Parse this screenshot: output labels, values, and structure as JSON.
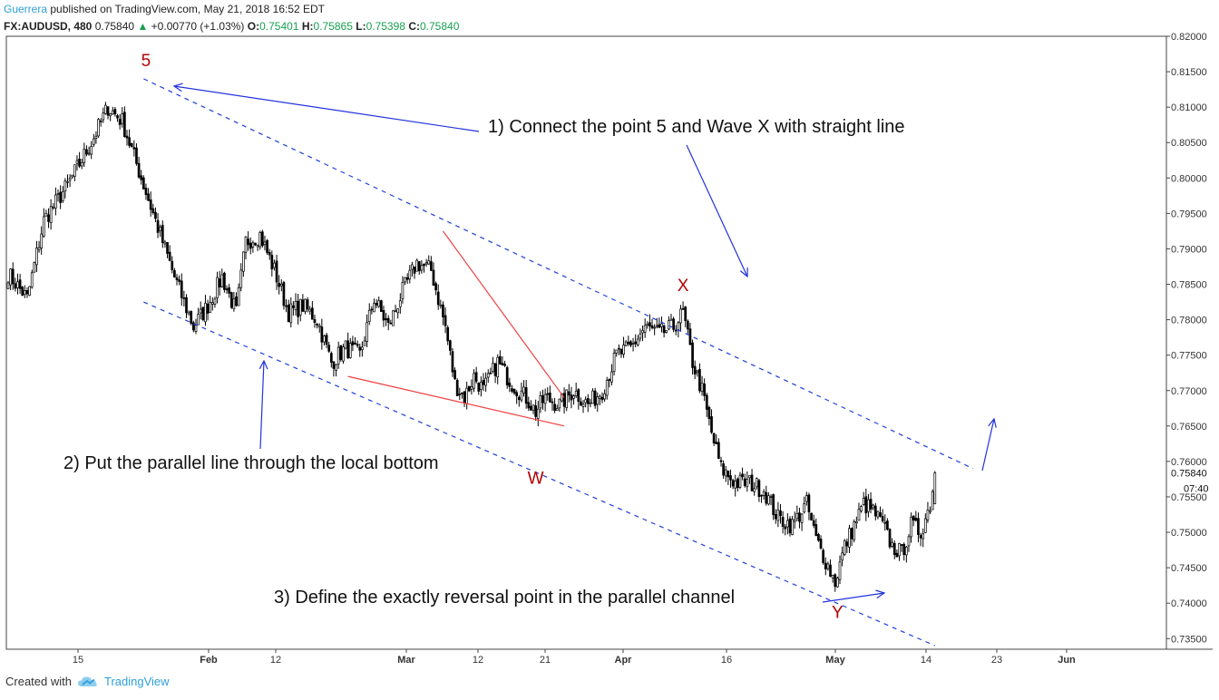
{
  "header": {
    "author": "Guerrera",
    "published": "published on TradingView.com, May 21, 2018 16:52 EDT",
    "symbol": "FX:AUDUSD, 480",
    "last": "0.75840",
    "arrow": "▲",
    "change": "+0.00770 (+1.03%)",
    "o_label": "O:",
    "o_value": "0.75401",
    "h_label": "H:",
    "h_value": "0.75865",
    "l_label": "L:",
    "l_value": "0.75398",
    "c_label": "C:",
    "c_value": "0.75840"
  },
  "footer": {
    "created_with": "Created with",
    "brand": "TradingView"
  },
  "colors": {
    "up": "#000000",
    "down": "#000000",
    "channel": "#1f3fe0",
    "wedge": "#f04040",
    "wave_label": "#b30000",
    "arrow": "#2233dd"
  },
  "chart_data": {
    "type": "candlestick",
    "title": "",
    "ylim": [
      0.7335,
      0.82
    ],
    "y_ticks": [
      "0.82000",
      "0.81500",
      "0.81000",
      "0.80500",
      "0.80000",
      "0.79500",
      "0.79000",
      "0.78500",
      "0.78000",
      "0.77500",
      "0.77000",
      "0.76500",
      "0.76000",
      "0.75500",
      "0.75000",
      "0.74500",
      "0.74000",
      "0.73500"
    ],
    "y_tick_values": [
      0.82,
      0.815,
      0.81,
      0.805,
      0.8,
      0.795,
      0.79,
      0.785,
      0.78,
      0.775,
      0.77,
      0.765,
      0.76,
      0.755,
      0.75,
      0.745,
      0.74,
      0.735
    ],
    "last_price_label": "0.75840",
    "countdown_label": "07:40",
    "x_tick_labels": [
      "15",
      "Feb",
      "12",
      "Mar",
      "12",
      "21",
      "Apr",
      "16",
      "May",
      "14",
      "23",
      "Jun"
    ],
    "x_tick_bold": [
      false,
      true,
      false,
      true,
      false,
      false,
      true,
      false,
      true,
      false,
      false,
      true
    ],
    "x_tick_index": [
      0,
      1,
      2,
      3,
      4,
      5,
      6,
      7,
      8,
      9,
      10,
      11
    ],
    "anchors_close": [
      [
        0,
        0.7865
      ],
      [
        8,
        0.783
      ],
      [
        15,
        0.794
      ],
      [
        25,
        0.799
      ],
      [
        35,
        0.805
      ],
      [
        42,
        0.81
      ],
      [
        48,
        0.808
      ],
      [
        56,
        0.8
      ],
      [
        62,
        0.794
      ],
      [
        70,
        0.786
      ],
      [
        78,
        0.779
      ],
      [
        84,
        0.782
      ],
      [
        90,
        0.786
      ],
      [
        96,
        0.781
      ],
      [
        100,
        0.791
      ],
      [
        106,
        0.792
      ],
      [
        112,
        0.787
      ],
      [
        118,
        0.781
      ],
      [
        124,
        0.782
      ],
      [
        130,
        0.78
      ],
      [
        136,
        0.774
      ],
      [
        142,
        0.776
      ],
      [
        148,
        0.775
      ],
      [
        154,
        0.783
      ],
      [
        160,
        0.779
      ],
      [
        166,
        0.784
      ],
      [
        172,
        0.788
      ],
      [
        178,
        0.787
      ],
      [
        184,
        0.779
      ],
      [
        188,
        0.771
      ],
      [
        192,
        0.769
      ],
      [
        196,
        0.772
      ],
      [
        200,
        0.77
      ],
      [
        206,
        0.774
      ],
      [
        212,
        0.771
      ],
      [
        218,
        0.769
      ],
      [
        222,
        0.767
      ],
      [
        226,
        0.769
      ],
      [
        232,
        0.768
      ],
      [
        238,
        0.77
      ],
      [
        244,
        0.768
      ],
      [
        250,
        0.77
      ],
      [
        256,
        0.775
      ],
      [
        262,
        0.776
      ],
      [
        268,
        0.779
      ],
      [
        274,
        0.778
      ],
      [
        280,
        0.779
      ],
      [
        284,
        0.781
      ],
      [
        288,
        0.774
      ],
      [
        292,
        0.77
      ],
      [
        296,
        0.764
      ],
      [
        300,
        0.759
      ],
      [
        306,
        0.757
      ],
      [
        312,
        0.757
      ],
      [
        318,
        0.756
      ],
      [
        324,
        0.752
      ],
      [
        330,
        0.751
      ],
      [
        336,
        0.754
      ],
      [
        340,
        0.749
      ],
      [
        344,
        0.746
      ],
      [
        348,
        0.743
      ],
      [
        352,
        0.748
      ],
      [
        356,
        0.751
      ],
      [
        360,
        0.754
      ],
      [
        364,
        0.753
      ],
      [
        368,
        0.751
      ],
      [
        372,
        0.748
      ],
      [
        376,
        0.747
      ],
      [
        380,
        0.751
      ],
      [
        384,
        0.75
      ],
      [
        388,
        0.754
      ],
      [
        390,
        0.7584
      ]
    ],
    "wave_labels": [
      {
        "label": "5",
        "index": 58,
        "price": 0.8135
      },
      {
        "label": "X",
        "index": 284,
        "price": 0.7815
      },
      {
        "label": "W",
        "index": 222,
        "price": 0.7645
      },
      {
        "label": "Y",
        "index": 349,
        "price": 0.7415
      }
    ],
    "channel_upper": {
      "i0": 57,
      "p0": 0.814,
      "i1": 406,
      "p1": 0.759
    },
    "channel_lower": {
      "i0": 57,
      "p0": 0.7825,
      "i1": 390,
      "p1": 0.734
    },
    "wedge_upper": {
      "i0": 183,
      "p0": 0.7925,
      "i1": 234,
      "p1": 0.769
    },
    "wedge_lower": {
      "i0": 143,
      "p0": 0.772,
      "i1": 234,
      "p1": 0.765
    },
    "annotations": [
      {
        "text": "1) Connect the point 5 and Wave X with straight line"
      },
      {
        "text": "2) Put the parallel line through the local bottom"
      },
      {
        "text": "3) Define the exactly reversal point in the parallel channel"
      }
    ]
  }
}
